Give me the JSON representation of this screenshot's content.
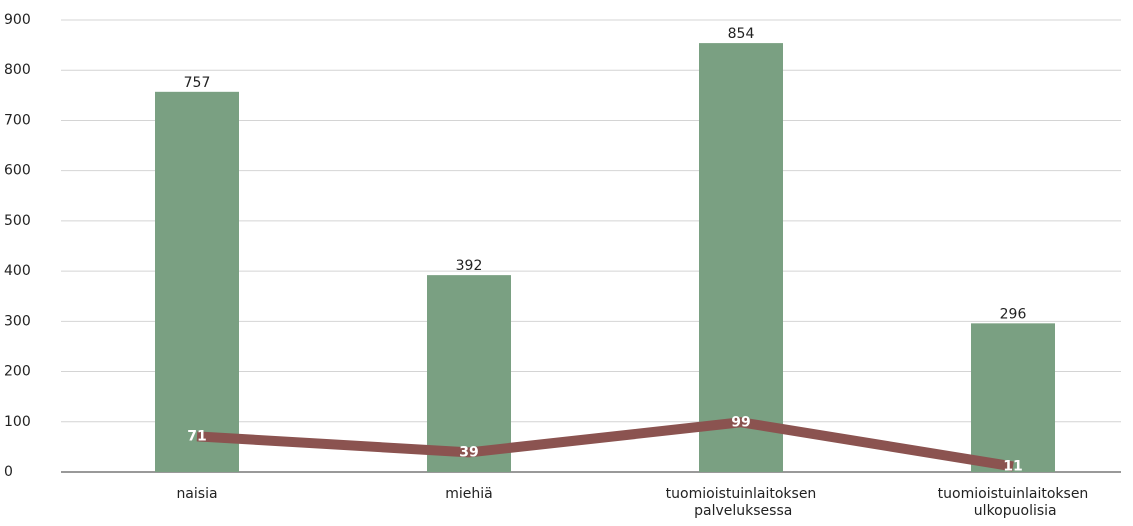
{
  "chart_data": {
    "type": "bar",
    "categories": [
      "naisia",
      "miehiä",
      "tuomioistuinlaitoksen palveluksessa",
      "tuomioistuinlaitoksen ulkopuolisia"
    ],
    "series": [
      {
        "type": "bar",
        "color": "#7aa082",
        "values": [
          757,
          392,
          854,
          296
        ]
      },
      {
        "type": "line",
        "color": "#8b5350",
        "values": [
          71,
          39,
          99,
          11
        ]
      }
    ],
    "ylim": [
      0,
      900
    ],
    "yticks": [
      0,
      100,
      200,
      300,
      400,
      500,
      600,
      700,
      800,
      900
    ],
    "grid": true
  }
}
